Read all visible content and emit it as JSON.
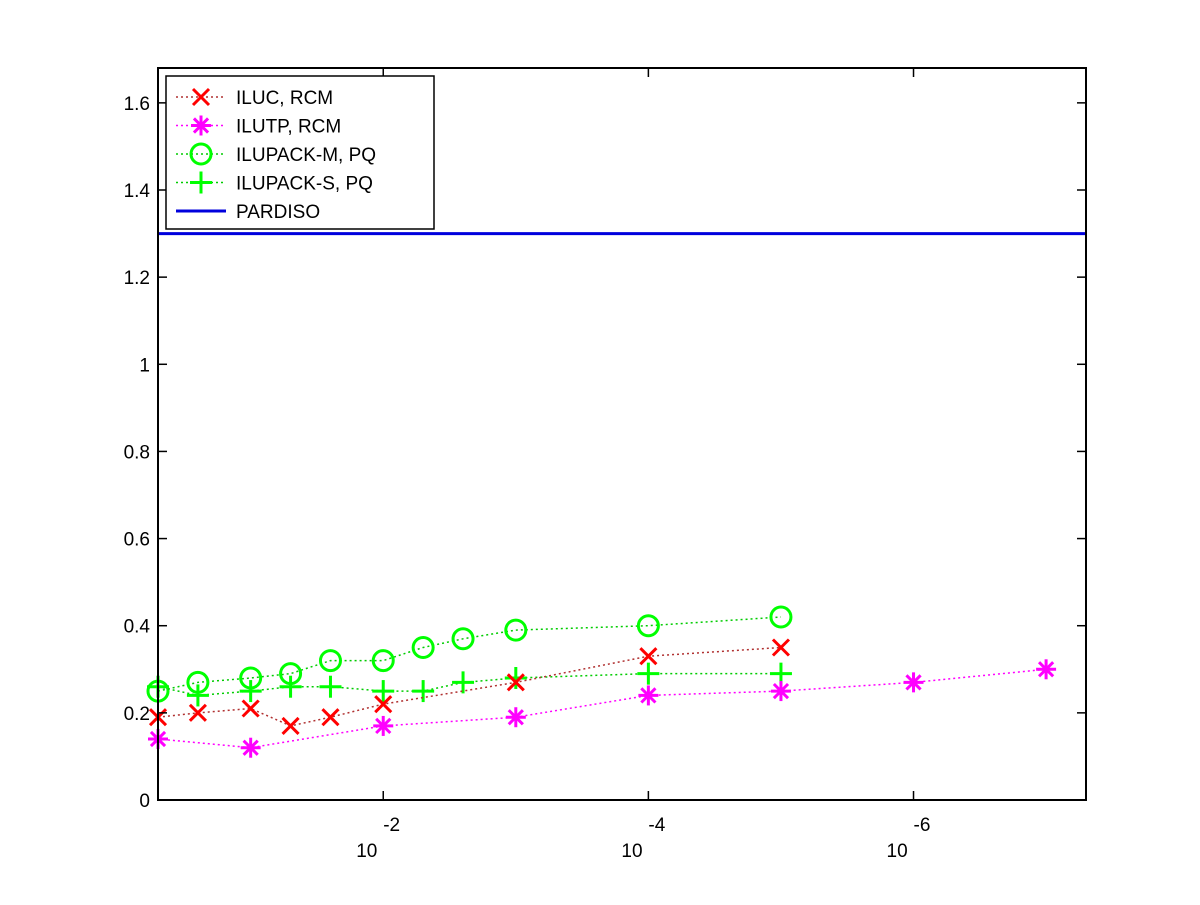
{
  "chart_data": {
    "type": "line",
    "title": "",
    "xlabel": "",
    "ylabel": "",
    "x_scale": "log_reversed",
    "xlim": [
      0.5,
      5e-08
    ],
    "ylim": [
      0,
      1.68
    ],
    "x_ticks": [
      {
        "value": 0.01,
        "base": "10",
        "exp": "-2"
      },
      {
        "value": 0.0001,
        "base": "10",
        "exp": "-4"
      },
      {
        "value": 1e-06,
        "base": "10",
        "exp": "-6"
      }
    ],
    "y_ticks": [
      {
        "value": 0,
        "label": "0"
      },
      {
        "value": 0.2,
        "label": "0.2"
      },
      {
        "value": 0.4,
        "label": "0.4"
      },
      {
        "value": 0.6,
        "label": "0.6"
      },
      {
        "value": 0.8,
        "label": "0.8"
      },
      {
        "value": 1.0,
        "label": "1"
      },
      {
        "value": 1.2,
        "label": "1.2"
      },
      {
        "value": 1.4,
        "label": "1.4"
      },
      {
        "value": 1.6,
        "label": "1.6"
      }
    ],
    "legend_position": "top-left",
    "grid": false,
    "series": [
      {
        "name": "ILUC, RCM",
        "color": "#ff0000",
        "line_color": "#b03030",
        "marker": "x",
        "line_style": "dotted",
        "x": [
          0.5,
          0.25,
          0.1,
          0.05,
          0.025,
          0.01,
          0.001,
          0.0001,
          1e-05
        ],
        "y": [
          0.19,
          0.2,
          0.21,
          0.17,
          0.19,
          0.22,
          0.27,
          0.33,
          0.35
        ]
      },
      {
        "name": "ILUTP, RCM",
        "color": "#ff00ff",
        "line_color": "#ff00ff",
        "marker": "star",
        "line_style": "dotted",
        "x": [
          0.5,
          0.1,
          0.01,
          0.001,
          0.0001,
          1e-05,
          1e-06,
          1e-07
        ],
        "y": [
          0.14,
          0.12,
          0.17,
          0.19,
          0.24,
          0.25,
          0.27,
          0.3
        ]
      },
      {
        "name": "ILUPACK-M, PQ",
        "color": "#00ff00",
        "line_color": "#00cc00",
        "marker": "circle",
        "line_style": "dotted",
        "x": [
          0.5,
          0.25,
          0.1,
          0.05,
          0.025,
          0.01,
          0.005,
          0.0025,
          0.001,
          0.0001,
          1e-05
        ],
        "y": [
          0.25,
          0.27,
          0.28,
          0.29,
          0.32,
          0.32,
          0.35,
          0.37,
          0.39,
          0.4,
          0.42
        ]
      },
      {
        "name": "ILUPACK-S, PQ",
        "color": "#00ff00",
        "line_color": "#00cc00",
        "marker": "plus",
        "line_style": "dotted",
        "x": [
          0.5,
          0.25,
          0.1,
          0.05,
          0.025,
          0.01,
          0.005,
          0.0025,
          0.001,
          0.0001,
          1e-05
        ],
        "y": [
          0.26,
          0.24,
          0.25,
          0.26,
          0.26,
          0.25,
          0.25,
          0.27,
          0.28,
          0.29,
          0.29
        ]
      },
      {
        "name": "PARDISO",
        "color": "#0000dd",
        "line_color": "#0000dd",
        "marker": "none",
        "line_style": "solid",
        "x": [
          0.5,
          5e-08
        ],
        "y": [
          1.3,
          1.3
        ]
      }
    ]
  }
}
